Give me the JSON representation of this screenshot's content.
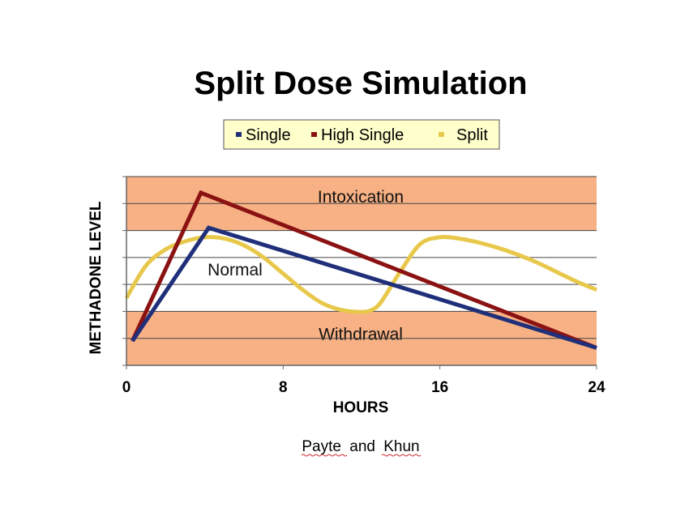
{
  "chart_data": {
    "type": "line",
    "title": "Split Dose Simulation",
    "xlabel": "HOURS",
    "ylabel": "METHADONE LEVEL",
    "xlim": [
      0,
      24
    ],
    "ylim": [
      0,
      7
    ],
    "x_ticks": [
      "0",
      "8",
      "16",
      "24"
    ],
    "x_tick_values": [
      0,
      8,
      16,
      24
    ],
    "y_gridlines": [
      1,
      2,
      3,
      4,
      5,
      6,
      7
    ],
    "grid": true,
    "legend_position": "top-center",
    "legend_box_color": "#ffffcc",
    "zones": [
      {
        "label": "Intoxication",
        "from": 5.0,
        "to": 7.0,
        "color": "#f7b184"
      },
      {
        "label": "Normal",
        "from": 2.0,
        "to": 5.0,
        "color": "#ffffff"
      },
      {
        "label": "Withdrawal",
        "from": 0.0,
        "to": 2.0,
        "color": "#f7b184"
      }
    ],
    "series": [
      {
        "name": "Single",
        "color": "#1f2f7a",
        "x": [
          0.3,
          4.2,
          24
        ],
        "y": [
          0.9,
          5.1,
          0.65
        ]
      },
      {
        "name": "High Single",
        "color": "#8b1212",
        "x": [
          0.3,
          3.8,
          24
        ],
        "y": [
          0.9,
          6.4,
          0.65
        ]
      },
      {
        "name": "Split",
        "color": "#e8c84a",
        "smooth": true,
        "x": [
          0,
          1,
          2,
          3,
          4,
          5,
          6,
          7,
          8,
          9,
          10,
          11,
          12,
          12.5,
          13,
          14,
          15,
          16,
          17,
          18,
          19,
          20,
          21,
          22,
          23,
          24
        ],
        "y": [
          2.5,
          3.7,
          4.3,
          4.6,
          4.75,
          4.7,
          4.45,
          4.0,
          3.4,
          2.8,
          2.3,
          2.05,
          1.98,
          2.05,
          2.35,
          3.5,
          4.5,
          4.75,
          4.7,
          4.55,
          4.35,
          4.1,
          3.8,
          3.45,
          3.1,
          2.8
        ]
      }
    ]
  },
  "source": {
    "author1": "Payte",
    "connector": "and",
    "author2": "Khun"
  }
}
